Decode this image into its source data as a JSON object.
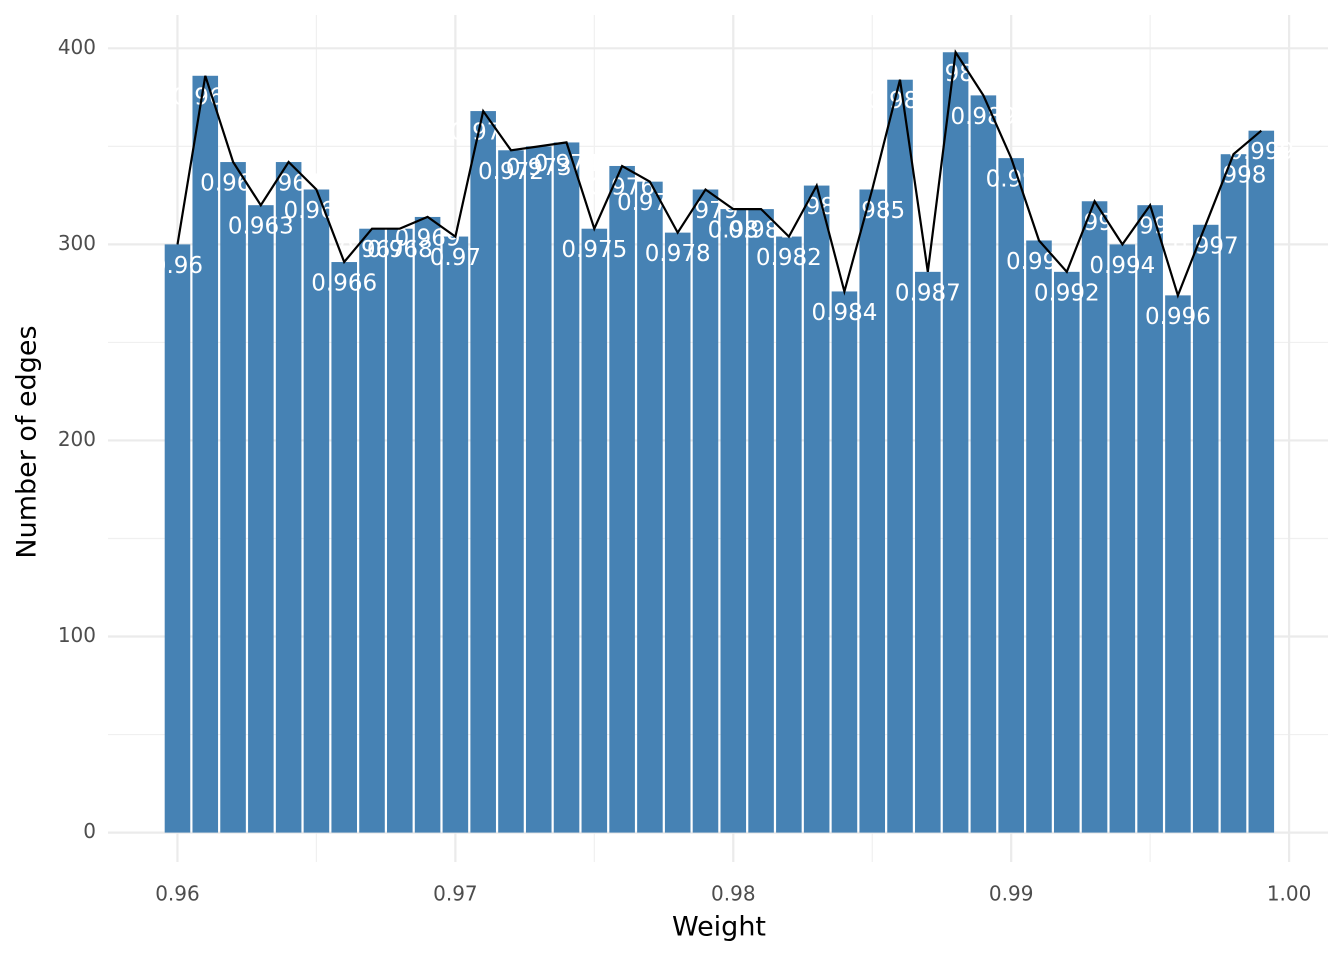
{
  "chart_data": {
    "type": "bar",
    "x_label": "Weight",
    "y_label": "Number of edges",
    "x": [
      0.96,
      0.961,
      0.962,
      0.963,
      0.964,
      0.965,
      0.966,
      0.967,
      0.968,
      0.969,
      0.97,
      0.971,
      0.972,
      0.973,
      0.974,
      0.975,
      0.976,
      0.977,
      0.978,
      0.979,
      0.98,
      0.981,
      0.982,
      0.983,
      0.984,
      0.985,
      0.986,
      0.987,
      0.988,
      0.989,
      0.99,
      0.991,
      0.992,
      0.993,
      0.994,
      0.995,
      0.996,
      0.997,
      0.998,
      0.999
    ],
    "values": [
      300,
      386,
      342,
      320,
      342,
      328,
      291,
      308,
      308,
      314,
      304,
      368,
      348,
      350,
      352,
      308,
      340,
      332,
      306,
      328,
      318,
      318,
      304,
      330,
      276,
      328,
      384,
      286,
      398,
      376,
      344,
      302,
      286,
      322,
      300,
      320,
      274,
      310,
      346,
      358
    ],
    "color": "#4682b4",
    "line_color": "#000000",
    "label_color": "#ffffff",
    "xlim": [
      0.9575,
      1.0014
    ],
    "ylim": [
      -15,
      417
    ],
    "xticks": [
      0.96,
      0.97,
      0.98,
      0.99,
      {
        "value": 1,
        "label": "1.00"
      }
    ],
    "yticks": [
      0,
      100,
      200,
      300,
      400
    ],
    "grid": true
  }
}
